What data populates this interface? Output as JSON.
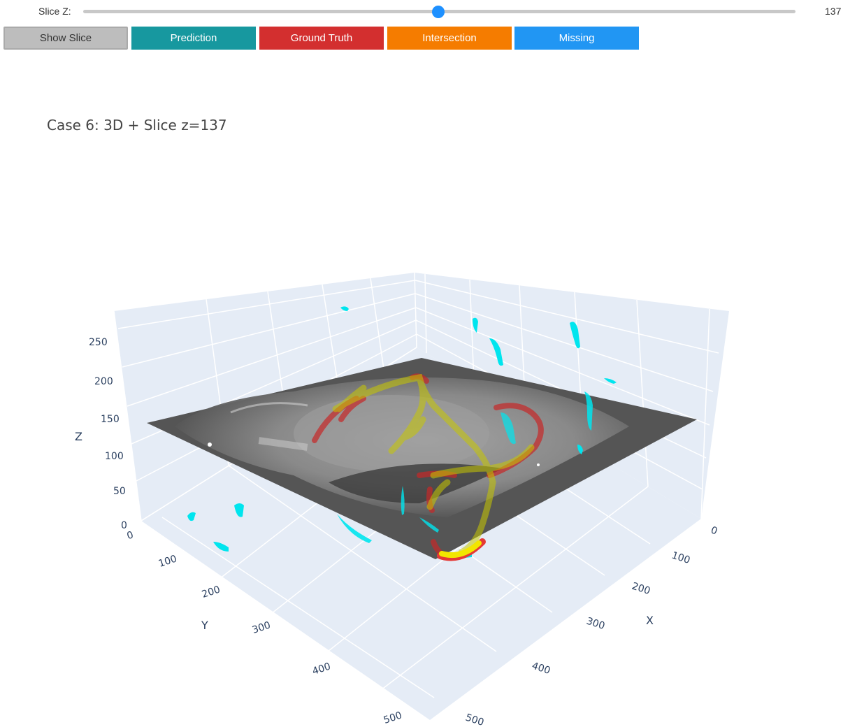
{
  "slider": {
    "label": "Slice Z:",
    "value": "137",
    "min": 0,
    "max": 275,
    "current": 137
  },
  "buttons": [
    {
      "label": "Show Slice",
      "color": "#bdbdbd",
      "name": "show-slice-button"
    },
    {
      "label": "Prediction",
      "color": "#17989f",
      "name": "prediction-button"
    },
    {
      "label": "Ground Truth",
      "color": "#d32f2f",
      "name": "ground-truth-button"
    },
    {
      "label": "Intersection",
      "color": "#f57c00",
      "name": "intersection-button"
    },
    {
      "label": "Missing",
      "color": "#2196f3",
      "name": "missing-button"
    }
  ],
  "plot": {
    "title": "Case 6: 3D + Slice z=137",
    "background": "#e5ecf6",
    "axes": {
      "x": {
        "title": "X",
        "ticks": [
          "0",
          "100",
          "200",
          "300",
          "400",
          "500"
        ]
      },
      "y": {
        "title": "Y",
        "ticks": [
          "0",
          "100",
          "200",
          "300",
          "400",
          "500"
        ]
      },
      "z": {
        "title": "Z",
        "ticks": [
          "0",
          "50",
          "100",
          "150",
          "200",
          "250"
        ]
      }
    },
    "colors": {
      "prediction": "#17989f",
      "ground_truth": "#d32f2f",
      "intersection": "#c8c800",
      "missing": "#00e5ee",
      "slice": "#6e6e6e"
    }
  }
}
